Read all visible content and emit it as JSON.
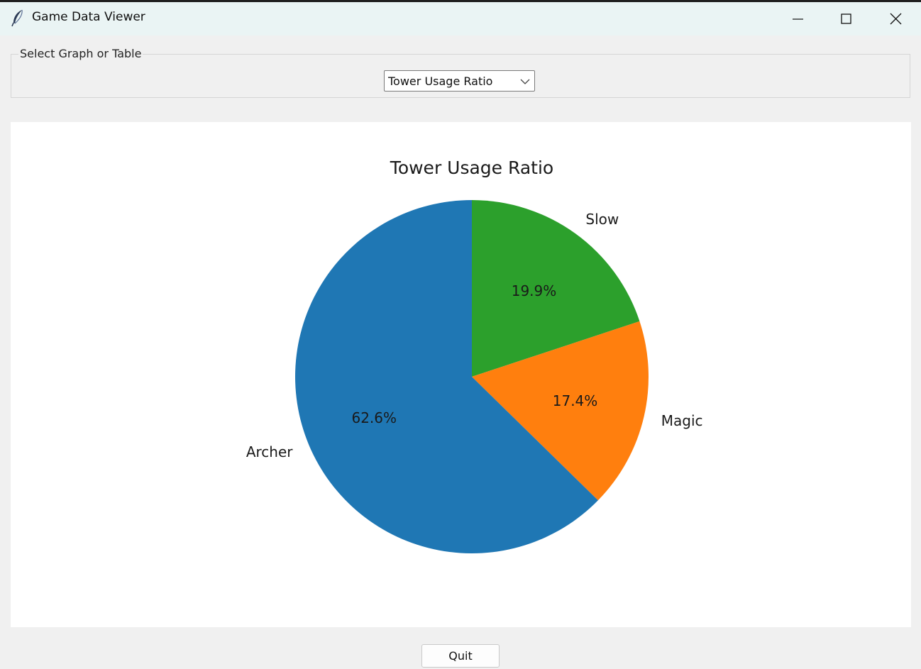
{
  "window": {
    "title": "Game Data Viewer"
  },
  "selector": {
    "group_label": "Select Graph or Table",
    "selected": "Tower Usage Ratio"
  },
  "chart_data": {
    "type": "pie",
    "title": "Tower Usage Ratio",
    "slices": [
      {
        "label": "Slow",
        "value": 19.9,
        "display": "19.9%",
        "color": "#2ca02c"
      },
      {
        "label": "Magic",
        "value": 17.4,
        "display": "17.4%",
        "color": "#ff7f0e"
      },
      {
        "label": "Archer",
        "value": 62.6,
        "display": "62.6%",
        "color": "#1f77b4"
      }
    ],
    "start_angle_deg": 90,
    "direction": "clockwise"
  },
  "footer": {
    "quit_label": "Quit"
  }
}
